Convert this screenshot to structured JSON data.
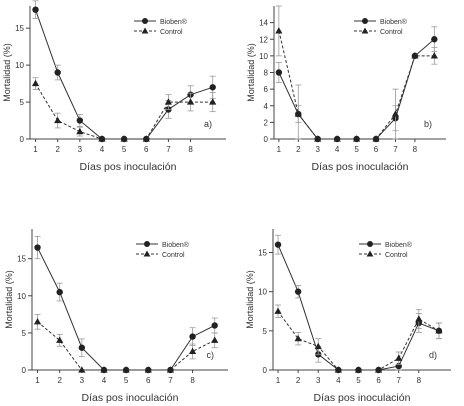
{
  "chart_data": [
    {
      "type": "line",
      "panel_label": "a)",
      "xlabel": "Días pos inoculación",
      "ylabel": "Mortalidad (%)",
      "x_ticks": [
        "1",
        "2",
        "3",
        "4",
        "5",
        "6",
        "7",
        "8"
      ],
      "x_max": 9.6,
      "ylim": [
        0,
        18
      ],
      "y_ticks": [
        0,
        5,
        10,
        15
      ],
      "legend_placement": "top-right",
      "series": [
        {
          "name": "Bioben®",
          "marker": "circle",
          "line": "solid",
          "color": "#333333",
          "x": [
            1,
            2,
            3,
            4,
            5,
            6,
            7,
            8,
            9
          ],
          "y": [
            17.5,
            9,
            2.5,
            0,
            0,
            0,
            4,
            6,
            7
          ],
          "err": [
            1.2,
            1.0,
            0.8,
            0,
            0,
            0,
            1.2,
            1.2,
            1.5
          ]
        },
        {
          "name": "Control",
          "marker": "triangle",
          "line": "dashed",
          "color": "#333333",
          "x": [
            1,
            2,
            3,
            4,
            5,
            6,
            7,
            8,
            9
          ],
          "y": [
            7.5,
            2.5,
            1,
            0,
            0,
            0,
            5,
            5,
            5
          ],
          "err": [
            0.8,
            1.0,
            0.6,
            0,
            0,
            0,
            1.0,
            1.2,
            1.3
          ]
        }
      ]
    },
    {
      "type": "line",
      "panel_label": "b)",
      "xlabel": "Días pos inoculación",
      "ylabel": "Mortalidad (%)",
      "x_ticks": [
        "1",
        "2",
        "3",
        "4",
        "5",
        "6",
        "7",
        "8"
      ],
      "x_max": 9.6,
      "ylim": [
        0,
        16
      ],
      "y_ticks": [
        0,
        2,
        4,
        6,
        8,
        10,
        12,
        14
      ],
      "legend_placement": "top-right",
      "series": [
        {
          "name": "Bioben®",
          "marker": "circle",
          "line": "solid",
          "color": "#333333",
          "x": [
            1,
            2,
            3,
            4,
            5,
            6,
            7,
            8,
            9
          ],
          "y": [
            8,
            3,
            0,
            0,
            0,
            0,
            2.5,
            10,
            12
          ],
          "err": [
            1.2,
            1.0,
            0,
            0,
            0,
            0,
            1.5,
            0,
            1.5
          ]
        },
        {
          "name": "Control",
          "marker": "triangle",
          "line": "dashed",
          "color": "#333333",
          "x": [
            1,
            2,
            3,
            4,
            5,
            6,
            7,
            8,
            9
          ],
          "y": [
            13,
            3,
            0,
            0,
            0,
            0,
            3,
            10,
            10
          ],
          "err": [
            3.0,
            3.5,
            0,
            0,
            0,
            0,
            3.0,
            0,
            1.0
          ]
        }
      ]
    },
    {
      "type": "line",
      "panel_label": "c)",
      "xlabel": "Días pos inoculación",
      "ylabel": "Mortalidad (%)",
      "x_ticks": [
        "1",
        "2",
        "3",
        "4",
        "5",
        "6",
        "7",
        "8"
      ],
      "x_max": 9.6,
      "ylim": [
        0,
        19
      ],
      "y_ticks": [
        0,
        5,
        10,
        15
      ],
      "legend_placement": "top-right",
      "series": [
        {
          "name": "Bioben®",
          "marker": "circle",
          "line": "solid",
          "color": "#333333",
          "x": [
            1,
            2,
            3,
            4,
            5,
            6,
            7,
            8,
            9
          ],
          "y": [
            16.5,
            10.5,
            3,
            0,
            0,
            0,
            0,
            4.5,
            6
          ],
          "err": [
            1.5,
            1.2,
            1.2,
            0,
            0,
            0,
            0,
            1.2,
            1.0
          ]
        },
        {
          "name": "Control",
          "marker": "triangle",
          "line": "dashed",
          "color": "#333333",
          "x": [
            1,
            2,
            3,
            4,
            5,
            6,
            7,
            8,
            9
          ],
          "y": [
            6.5,
            4,
            0,
            0,
            0,
            0,
            0,
            2.5,
            4
          ],
          "err": [
            1.0,
            0.8,
            0,
            0,
            0,
            0,
            0,
            1.0,
            1.0
          ]
        }
      ]
    },
    {
      "type": "line",
      "panel_label": "d)",
      "xlabel": "Días pos inoculación",
      "ylabel": "Mortalidad (%)",
      "x_ticks": [
        "1",
        "2",
        "3",
        "4",
        "5",
        "6",
        "7",
        "8"
      ],
      "x_max": 9.6,
      "ylim": [
        0,
        18
      ],
      "y_ticks": [
        0,
        5,
        10,
        15
      ],
      "legend_placement": "top-right",
      "series": [
        {
          "name": "Bioben®",
          "marker": "circle",
          "line": "solid",
          "color": "#333333",
          "x": [
            1,
            2,
            3,
            4,
            5,
            6,
            7,
            8,
            9
          ],
          "y": [
            16,
            10,
            2,
            0,
            0,
            0,
            0.5,
            6,
            5
          ],
          "err": [
            1.2,
            0.8,
            1.0,
            0,
            0,
            0,
            0.8,
            1.2,
            1.0
          ]
        },
        {
          "name": "Control",
          "marker": "triangle",
          "line": "dashed",
          "color": "#333333",
          "x": [
            1,
            2,
            3,
            4,
            5,
            6,
            7,
            8,
            9
          ],
          "y": [
            7.5,
            4,
            3,
            0,
            0,
            0,
            1.5,
            6.5,
            5
          ],
          "err": [
            0.8,
            0.8,
            1.0,
            0,
            0,
            0,
            0.8,
            1.2,
            1.0
          ]
        }
      ]
    }
  ]
}
